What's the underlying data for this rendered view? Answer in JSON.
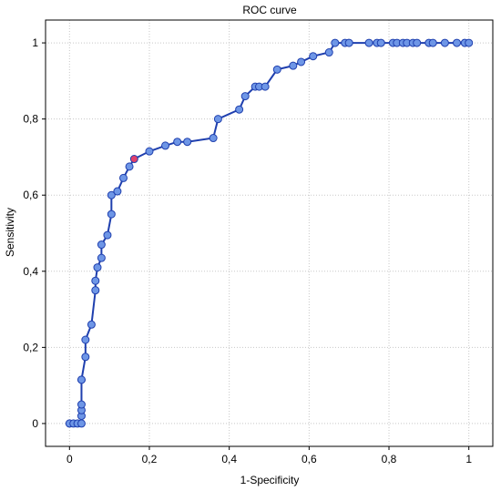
{
  "chart_data": {
    "type": "line",
    "title": "ROC curve",
    "xlabel": "1-Specificity",
    "ylabel": "Sensitivity",
    "xlim": [
      -0.06,
      1.06
    ],
    "ylim": [
      -0.06,
      1.06
    ],
    "x_ticks": [
      0,
      0.2,
      0.4,
      0.6,
      0.8,
      1
    ],
    "y_ticks": [
      0,
      0.2,
      0.4,
      0.6,
      0.8,
      1
    ],
    "x_tick_labels": [
      "0",
      "0,2",
      "0,4",
      "0,6",
      "0,8",
      "1"
    ],
    "y_tick_labels": [
      "0",
      "0,2",
      "0,4",
      "0,6",
      "0,8",
      "1"
    ],
    "grid": true,
    "line_color": "#1f3fae",
    "marker_color": "#6e96e6",
    "highlight_color": "#e0406a",
    "series": [
      {
        "x": [
          0,
          0.01,
          0.02,
          0.03,
          0.03,
          0.03,
          0.03,
          0.03,
          0.03,
          0.04,
          0.04,
          0.055,
          0.065,
          0.065,
          0.07,
          0.08,
          0.08,
          0.095,
          0.105,
          0.105,
          0.12,
          0.135,
          0.15,
          0.162,
          0.2,
          0.24,
          0.27,
          0.295,
          0.36,
          0.372,
          0.425,
          0.44,
          0.465,
          0.475,
          0.49,
          0.52,
          0.56,
          0.58,
          0.61,
          0.65,
          0.665,
          0.69,
          0.7,
          0.75,
          0.77,
          0.78,
          0.81,
          0.82,
          0.835,
          0.845,
          0.86,
          0.87,
          0.9,
          0.91,
          0.94,
          0.97,
          0.99,
          1
        ],
        "y": [
          0,
          0,
          0,
          0,
          0.02,
          0.035,
          0.05,
          0.115,
          0.115,
          0.175,
          0.22,
          0.26,
          0.35,
          0.375,
          0.41,
          0.435,
          0.47,
          0.495,
          0.55,
          0.6,
          0.61,
          0.645,
          0.675,
          0.695,
          0.715,
          0.73,
          0.74,
          0.74,
          0.75,
          0.8,
          0.825,
          0.86,
          0.885,
          0.885,
          0.885,
          0.93,
          0.94,
          0.95,
          0.965,
          0.975,
          1,
          1,
          1,
          1,
          1,
          1,
          1,
          1,
          1,
          1,
          1,
          1,
          1,
          1,
          1,
          1,
          1,
          1
        ],
        "highlight_index": 23
      }
    ]
  }
}
